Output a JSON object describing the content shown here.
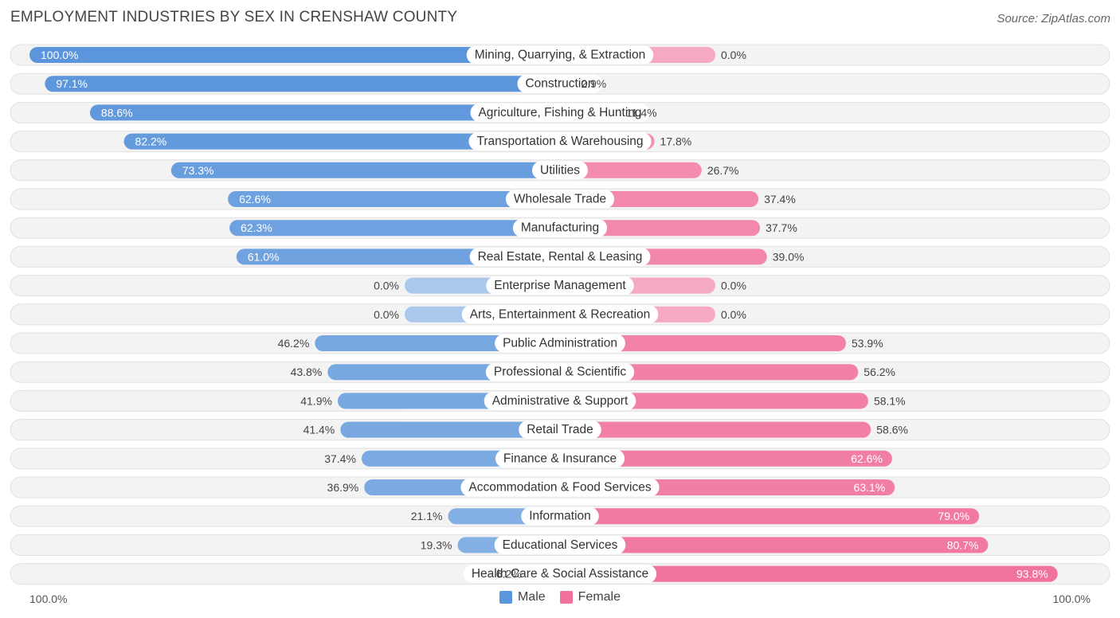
{
  "title": "EMPLOYMENT INDUSTRIES BY SEX IN CRENSHAW COUNTY",
  "source": "Source: ZipAtlas.com",
  "colors": {
    "male": "#5b95db",
    "female": "#f0719b",
    "male_light": "#a9c8ec",
    "female_light": "#f6a9c2"
  },
  "legend": {
    "male": "Male",
    "female": "Female"
  },
  "axis": {
    "left_label": "100.0%",
    "right_label": "100.0%"
  },
  "chart_data": {
    "type": "bar",
    "orientation": "horizontal-diverging",
    "title": "EMPLOYMENT INDUSTRIES BY SEX IN CRENSHAW COUNTY",
    "xlim": [
      -100,
      100
    ],
    "categories": [
      "Mining, Quarrying, & Extraction",
      "Construction",
      "Agriculture, Fishing & Hunting",
      "Transportation & Warehousing",
      "Utilities",
      "Wholesale Trade",
      "Manufacturing",
      "Real Estate, Rental & Leasing",
      "Enterprise Management",
      "Arts, Entertainment & Recreation",
      "Public Administration",
      "Professional & Scientific",
      "Administrative & Support",
      "Retail Trade",
      "Finance & Insurance",
      "Accommodation & Food Services",
      "Information",
      "Educational Services",
      "Health Care & Social Assistance"
    ],
    "series": [
      {
        "name": "Male",
        "values": [
          100.0,
          97.1,
          88.6,
          82.2,
          73.3,
          62.6,
          62.3,
          61.0,
          0.0,
          0.0,
          46.2,
          43.8,
          41.9,
          41.4,
          37.4,
          36.9,
          21.1,
          19.3,
          6.2
        ],
        "labels": [
          "100.0%",
          "97.1%",
          "88.6%",
          "82.2%",
          "73.3%",
          "62.6%",
          "62.3%",
          "61.0%",
          "0.0%",
          "0.0%",
          "46.2%",
          "43.8%",
          "41.9%",
          "41.4%",
          "37.4%",
          "36.9%",
          "21.1%",
          "19.3%",
          "6.2%"
        ]
      },
      {
        "name": "Female",
        "values": [
          0.0,
          2.9,
          11.4,
          17.8,
          26.7,
          37.4,
          37.7,
          39.0,
          0.0,
          0.0,
          53.9,
          56.2,
          58.1,
          58.6,
          62.6,
          63.1,
          79.0,
          80.7,
          93.8
        ],
        "labels": [
          "0.0%",
          "2.9%",
          "11.4%",
          "17.8%",
          "26.7%",
          "37.4%",
          "37.7%",
          "39.0%",
          "0.0%",
          "0.0%",
          "53.9%",
          "56.2%",
          "58.1%",
          "58.6%",
          "62.6%",
          "63.1%",
          "79.0%",
          "80.7%",
          "93.8%"
        ]
      }
    ]
  }
}
